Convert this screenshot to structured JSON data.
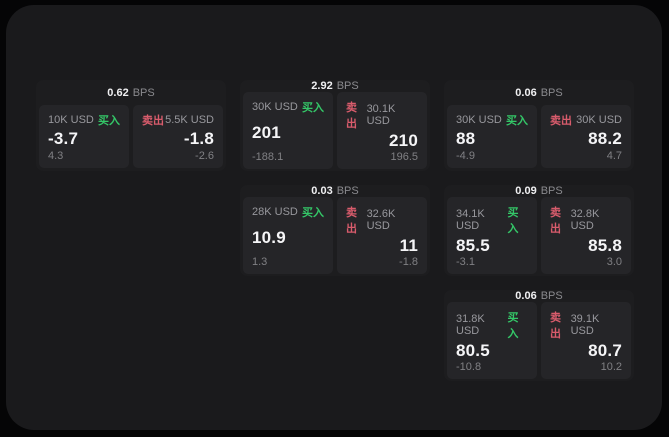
{
  "labels": {
    "bps": "BPS",
    "buy": "买入",
    "sell": "卖出"
  },
  "colors": {
    "background": "#050506",
    "panel": "#1a1a1c",
    "card": "#1d1d1f",
    "tile": "#252528",
    "buy_green": "#34c768",
    "sell_red": "#d95c6c",
    "text_primary": "#f5f5f7",
    "text_secondary": "#98989d",
    "text_muted": "#808084"
  },
  "cards": [
    {
      "bps": "0.62",
      "buy": {
        "amount": "10K USD",
        "value": "-3.7",
        "delta": "4.3"
      },
      "sell": {
        "amount": "5.5K USD",
        "value": "-1.8",
        "delta": "-2.6"
      }
    },
    {
      "bps": "2.92",
      "buy": {
        "amount": "30K USD",
        "value": "201",
        "delta": "-188.1"
      },
      "sell": {
        "amount": "30.1K USD",
        "value": "210",
        "delta": "196.5"
      }
    },
    {
      "bps": "0.06",
      "buy": {
        "amount": "30K USD",
        "value": "88",
        "delta": "-4.9"
      },
      "sell": {
        "amount": "30K USD",
        "value": "88.2",
        "delta": "4.7"
      }
    },
    {
      "bps": "0.03",
      "buy": {
        "amount": "28K USD",
        "value": "10.9",
        "delta": "1.3"
      },
      "sell": {
        "amount": "32.6K USD",
        "value": "11",
        "delta": "-1.8"
      }
    },
    {
      "bps": "0.09",
      "buy": {
        "amount": "34.1K USD",
        "value": "85.5",
        "delta": "-3.1"
      },
      "sell": {
        "amount": "32.8K USD",
        "value": "85.8",
        "delta": "3.0"
      }
    },
    {
      "bps": "0.06",
      "buy": {
        "amount": "31.8K USD",
        "value": "80.5",
        "delta": "-10.8"
      },
      "sell": {
        "amount": "39.1K USD",
        "value": "80.7",
        "delta": "10.2"
      }
    }
  ]
}
